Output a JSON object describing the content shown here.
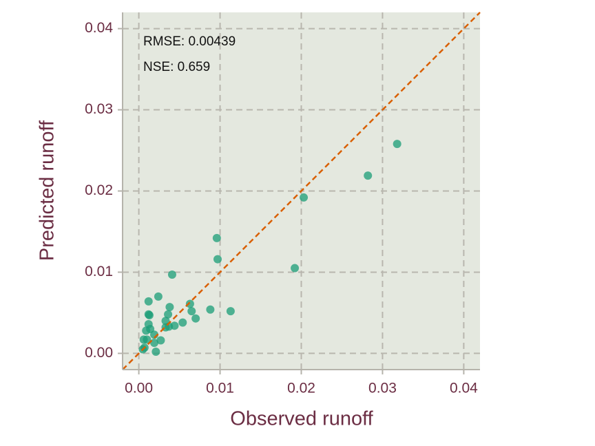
{
  "chart_data": {
    "type": "scatter",
    "xlabel": "Observed runoff",
    "ylabel": "Predicted runoff",
    "annotations": [
      "RMSE: 0.00439",
      "NSE: 0.659"
    ],
    "x": [
      0.0318,
      0.0282,
      0.0203,
      0.0192,
      0.0096,
      0.0097,
      0.0113,
      0.0088,
      0.0041,
      0.0024,
      0.0012,
      0.0038,
      0.0063,
      0.0065,
      0.007,
      0.0054,
      0.0044,
      0.0036,
      0.0033,
      0.0037,
      0.0033,
      0.0012,
      0.0013,
      0.0012,
      0.0014,
      0.0009,
      0.0019,
      0.0027,
      0.0019,
      0.0006,
      0.001,
      0.0007,
      0.0005,
      0.0021
    ],
    "values": [
      0.0258,
      0.0219,
      0.0192,
      0.0105,
      0.0142,
      0.0116,
      0.0052,
      0.0054,
      0.0097,
      0.007,
      0.0064,
      0.0057,
      0.0061,
      0.0052,
      0.0043,
      0.0038,
      0.0034,
      0.0048,
      0.004,
      0.0033,
      0.0032,
      0.0048,
      0.0047,
      0.0036,
      0.003,
      0.0028,
      0.0023,
      0.0016,
      0.0013,
      0.0017,
      0.0017,
      0.0007,
      0.0005,
      0.0002
    ],
    "color": "#1b9e77",
    "identity_line_color": "#d95f02",
    "xlim": [
      -0.002,
      0.042
    ],
    "ylim": [
      -0.002,
      0.042
    ],
    "xticks": [
      {
        "value": 0,
        "label": "0.00"
      },
      0.01,
      0.02,
      0.03,
      0.04
    ],
    "yticks": [
      {
        "value": 0,
        "label": "0.00"
      },
      0.01,
      0.02,
      0.03,
      0.04
    ],
    "grid": true
  }
}
